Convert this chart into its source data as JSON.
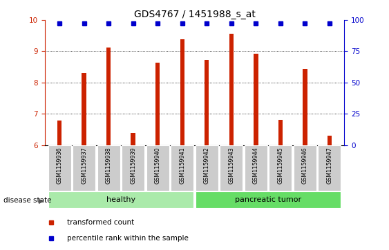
{
  "title": "GDS4767 / 1451988_s_at",
  "samples": [
    "GSM1159936",
    "GSM1159937",
    "GSM1159938",
    "GSM1159939",
    "GSM1159940",
    "GSM1159941",
    "GSM1159942",
    "GSM1159943",
    "GSM1159944",
    "GSM1159945",
    "GSM1159946",
    "GSM1159947"
  ],
  "transformed_counts": [
    6.78,
    8.3,
    9.12,
    6.38,
    8.63,
    9.38,
    8.72,
    9.55,
    8.93,
    6.8,
    8.43,
    6.3
  ],
  "percentile_values": [
    9.9,
    9.9,
    9.9,
    9.9,
    9.9,
    9.9,
    9.9,
    9.9,
    9.9,
    9.9,
    9.9,
    9.9
  ],
  "bar_color": "#cc2200",
  "percentile_color": "#0000cc",
  "ylim_left": [
    6,
    10
  ],
  "ylim_right": [
    0,
    100
  ],
  "yticks_left": [
    6,
    7,
    8,
    9,
    10
  ],
  "yticks_right": [
    0,
    25,
    50,
    75,
    100
  ],
  "groups": [
    {
      "label": "healthy",
      "start": 0,
      "end": 5,
      "color": "#aaeaaa"
    },
    {
      "label": "pancreatic tumor",
      "start": 6,
      "end": 11,
      "color": "#66dd66"
    }
  ],
  "disease_state_label": "disease state",
  "legend_items": [
    {
      "label": "transformed count",
      "color": "#cc2200"
    },
    {
      "label": "percentile rank within the sample",
      "color": "#0000cc"
    }
  ],
  "title_fontsize": 10,
  "bar_width": 0.18
}
